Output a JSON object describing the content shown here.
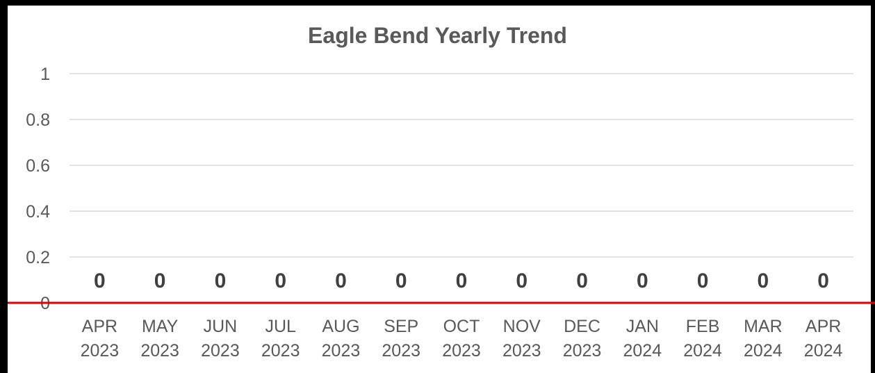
{
  "chart_data": {
    "type": "bar",
    "title": "Eagle Bend Yearly Trend",
    "xlabel": "",
    "ylabel": "",
    "ylim": [
      0,
      1
    ],
    "y_ticks": [
      "0",
      "0.2",
      "0.4",
      "0.6",
      "0.8",
      "1"
    ],
    "categories": [
      [
        "APR",
        "2023"
      ],
      [
        "MAY",
        "2023"
      ],
      [
        "JUN",
        "2023"
      ],
      [
        "JUL",
        "2023"
      ],
      [
        "AUG",
        "2023"
      ],
      [
        "SEP",
        "2023"
      ],
      [
        "OCT",
        "2023"
      ],
      [
        "NOV",
        "2023"
      ],
      [
        "DEC",
        "2023"
      ],
      [
        "JAN",
        "2024"
      ],
      [
        "FEB",
        "2024"
      ],
      [
        "MAR",
        "2024"
      ],
      [
        "APR",
        "2024"
      ]
    ],
    "values": [
      0,
      0,
      0,
      0,
      0,
      0,
      0,
      0,
      0,
      0,
      0,
      0,
      0
    ],
    "data_labels": [
      "0",
      "0",
      "0",
      "0",
      "0",
      "0",
      "0",
      "0",
      "0",
      "0",
      "0",
      "0",
      "0"
    ],
    "grid": true,
    "baseline_color": "#e00000",
    "gridline_color": "#d9d9d9",
    "text_color": "#595959"
  }
}
